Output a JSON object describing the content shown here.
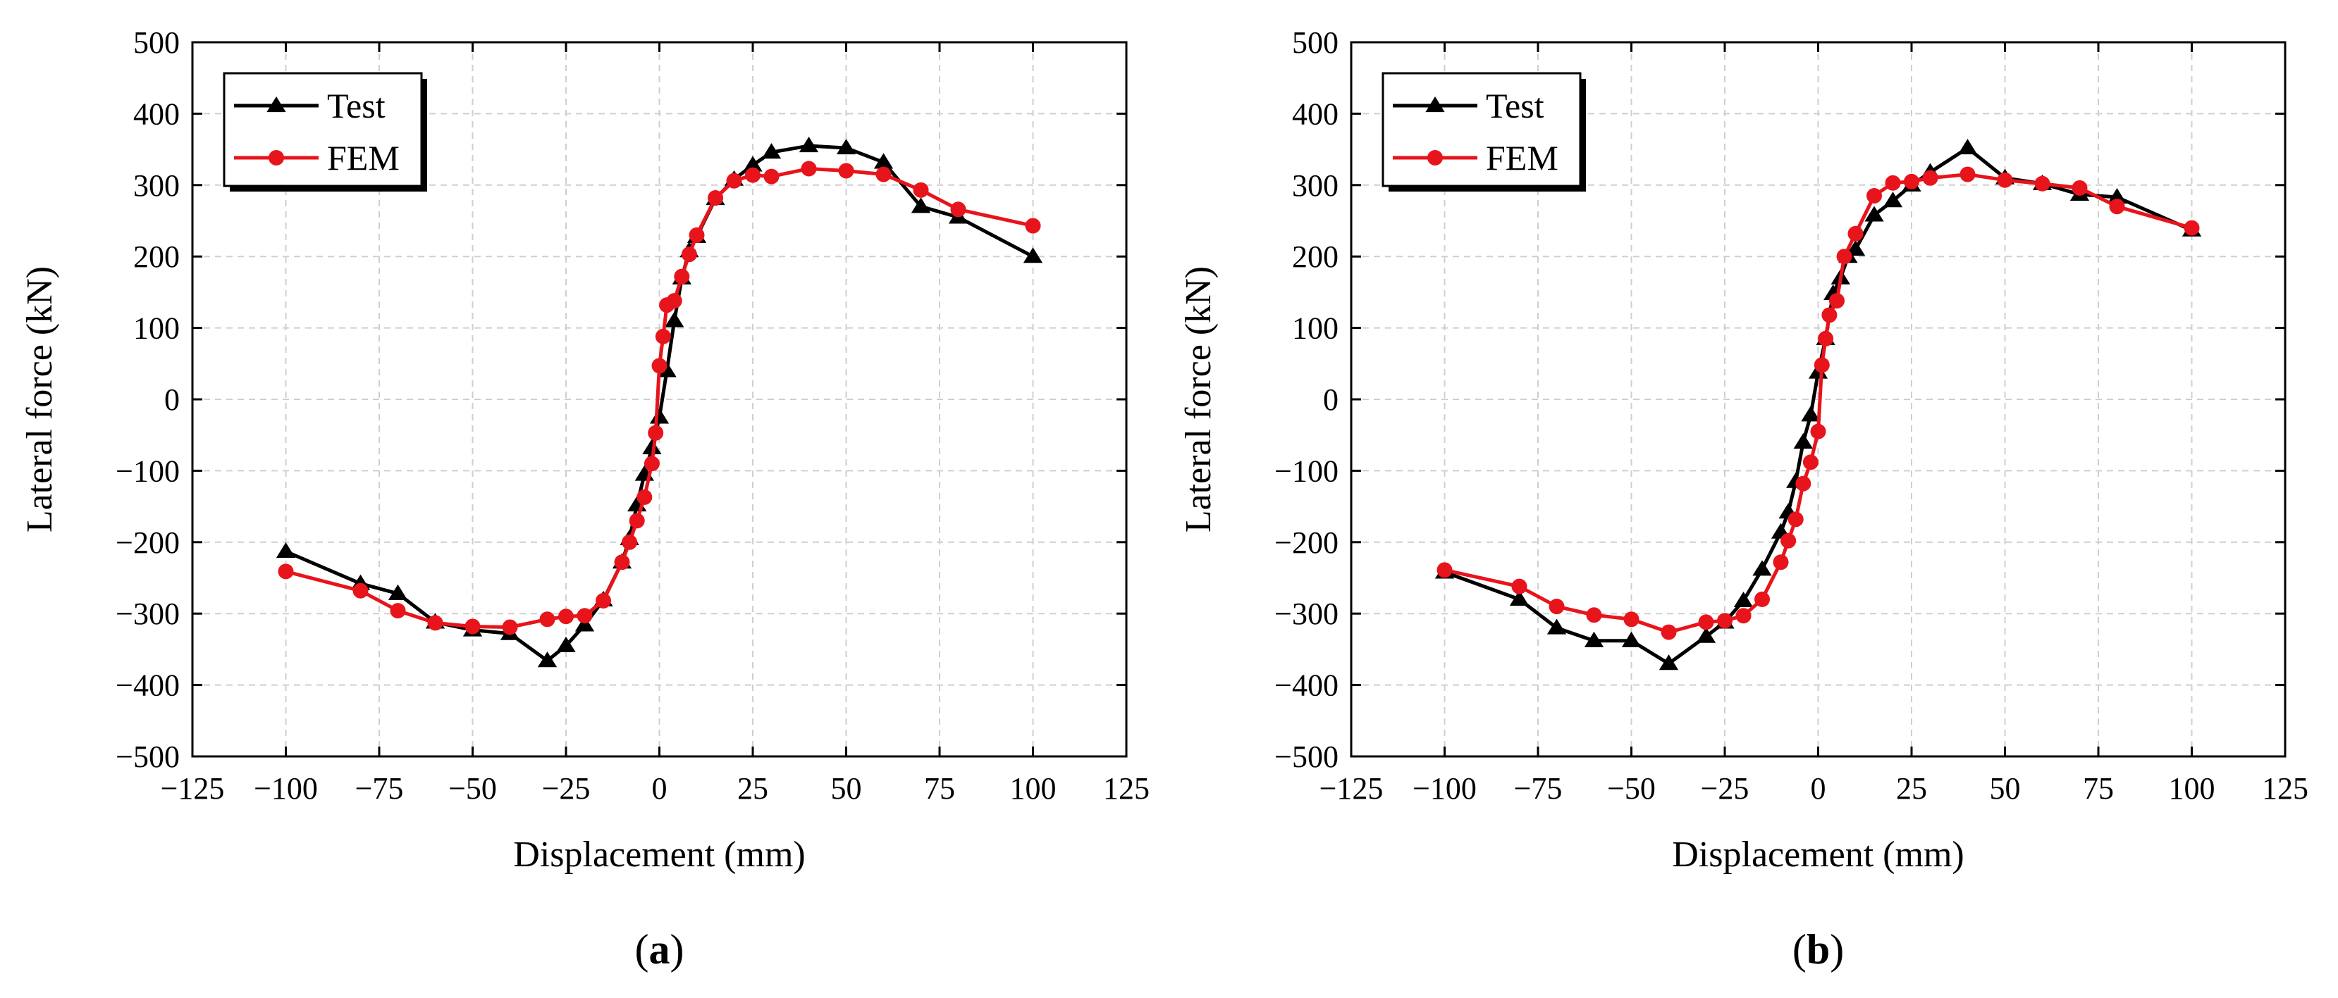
{
  "chart_data": [
    {
      "type": "line",
      "panel_label": "a",
      "xlabel": "Displacement (mm)",
      "ylabel": "Lateral force (kN)",
      "xlim": [
        -125,
        125
      ],
      "ylim": [
        -500,
        500
      ],
      "xticks": [
        -125,
        -100,
        -75,
        -50,
        -25,
        0,
        25,
        50,
        75,
        100,
        125
      ],
      "yticks": [
        500,
        400,
        300,
        200,
        100,
        0,
        -100,
        -200,
        -300,
        -400,
        -500
      ],
      "grid": true,
      "legend_position": "top-left",
      "series": [
        {
          "name": "Test",
          "color": "#000000",
          "marker": "triangle",
          "line_style": "solid",
          "x": [
            -100,
            -80,
            -70,
            -60,
            -50,
            -40,
            -30,
            -25,
            -20,
            -15,
            -10,
            -8,
            -6,
            -4,
            -2,
            0,
            2,
            4,
            6,
            8,
            10,
            15,
            20,
            25,
            30,
            40,
            50,
            60,
            70,
            80,
            100
          ],
          "y": [
            -213,
            -258,
            -272,
            -312,
            -323,
            -328,
            -366,
            -345,
            -316,
            -281,
            -228,
            -195,
            -148,
            -105,
            -68,
            -25,
            40,
            110,
            170,
            208,
            228,
            281,
            308,
            328,
            346,
            355,
            352,
            332,
            270,
            255,
            200
          ]
        },
        {
          "name": "FEM",
          "color": "#e8141b",
          "marker": "circle",
          "line_style": "solid",
          "x": [
            -100,
            -80,
            -70,
            -60,
            -50,
            -40,
            -30,
            -25,
            -20,
            -15,
            -10,
            -8,
            -6,
            -4,
            -2,
            -1,
            0,
            1,
            2,
            4,
            6,
            8,
            10,
            15,
            20,
            25,
            30,
            40,
            50,
            60,
            70,
            80,
            100
          ],
          "y": [
            -241,
            -268,
            -296,
            -313,
            -318,
            -319,
            -308,
            -304,
            -303,
            -282,
            -228,
            -200,
            -170,
            -137,
            -90,
            -47,
            47,
            88,
            132,
            138,
            172,
            203,
            230,
            282,
            306,
            314,
            312,
            323,
            320,
            315,
            293,
            266,
            243
          ]
        }
      ]
    },
    {
      "type": "line",
      "panel_label": "b",
      "xlabel": "Displacement (mm)",
      "ylabel": "Lateral force (kN)",
      "xlim": [
        -125,
        125
      ],
      "ylim": [
        -500,
        500
      ],
      "xticks": [
        -125,
        -100,
        -75,
        -50,
        -25,
        0,
        25,
        50,
        75,
        100,
        125
      ],
      "yticks": [
        500,
        400,
        300,
        200,
        100,
        0,
        -100,
        -200,
        -300,
        -400,
        -500
      ],
      "grid": true,
      "legend_position": "top-left",
      "series": [
        {
          "name": "Test",
          "color": "#000000",
          "marker": "triangle",
          "line_style": "solid",
          "x": [
            -100,
            -80,
            -70,
            -60,
            -50,
            -40,
            -30,
            -25,
            -20,
            -15,
            -10,
            -8,
            -6,
            -4,
            -2,
            0,
            2,
            4,
            6,
            8,
            10,
            15,
            20,
            25,
            30,
            40,
            50,
            60,
            70,
            80,
            100
          ],
          "y": [
            -242,
            -280,
            -320,
            -338,
            -338,
            -370,
            -332,
            -312,
            -282,
            -238,
            -186,
            -158,
            -115,
            -60,
            -22,
            38,
            85,
            148,
            170,
            200,
            210,
            258,
            278,
            300,
            318,
            352,
            310,
            302,
            287,
            283,
            237
          ]
        },
        {
          "name": "FEM",
          "color": "#e8141b",
          "marker": "circle",
          "line_style": "solid",
          "x": [
            -100,
            -80,
            -70,
            -60,
            -50,
            -40,
            -30,
            -25,
            -20,
            -15,
            -10,
            -8,
            -6,
            -4,
            -2,
            0,
            1,
            2,
            3,
            5,
            7,
            10,
            15,
            20,
            25,
            30,
            40,
            50,
            60,
            70,
            80,
            100
          ],
          "y": [
            -239,
            -262,
            -290,
            -302,
            -308,
            -326,
            -312,
            -310,
            -303,
            -280,
            -228,
            -198,
            -168,
            -118,
            -88,
            -45,
            48,
            85,
            118,
            138,
            200,
            232,
            285,
            303,
            305,
            310,
            315,
            307,
            302,
            296,
            270,
            240
          ]
        }
      ]
    }
  ]
}
